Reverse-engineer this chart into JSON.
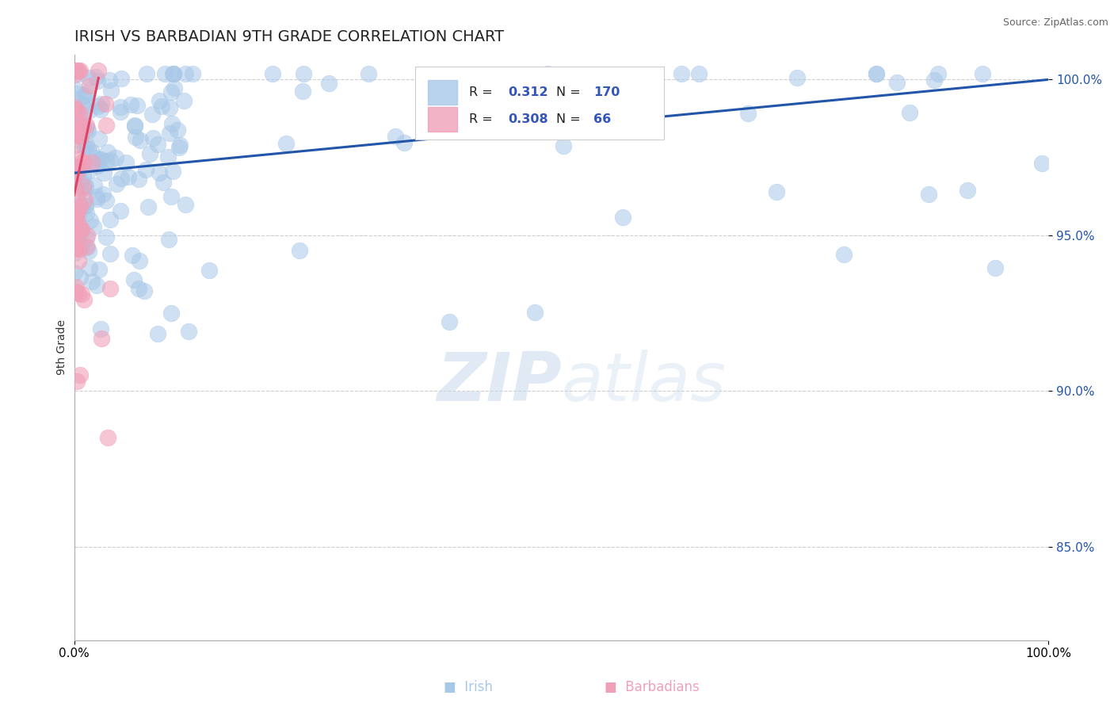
{
  "title": "IRISH VS BARBADIAN 9TH GRADE CORRELATION CHART",
  "source": "Source: ZipAtlas.com",
  "ylabel": "9th Grade",
  "irish_R": 0.312,
  "irish_N": 170,
  "barbadian_R": 0.308,
  "barbadian_N": 66,
  "xlim": [
    0.0,
    1.0
  ],
  "ylim": [
    0.82,
    1.008
  ],
  "yticks": [
    0.85,
    0.9,
    0.95,
    1.0
  ],
  "ytick_labels": [
    "85.0%",
    "90.0%",
    "95.0%",
    "100.0%"
  ],
  "xtick_labels": [
    "0.0%",
    "100.0%"
  ],
  "irish_color": "#A8C8E8",
  "barbadian_color": "#F0A0B8",
  "irish_line_color": "#2255AA",
  "barbadian_line_color": "#DD4466",
  "background_color": "#FFFFFF",
  "grid_color": "#BBBBBB",
  "watermark_color": "#C8D8EC",
  "legend_r_color": "#3355BB",
  "title_fontsize": 14,
  "axis_label_fontsize": 10,
  "tick_fontsize": 11
}
